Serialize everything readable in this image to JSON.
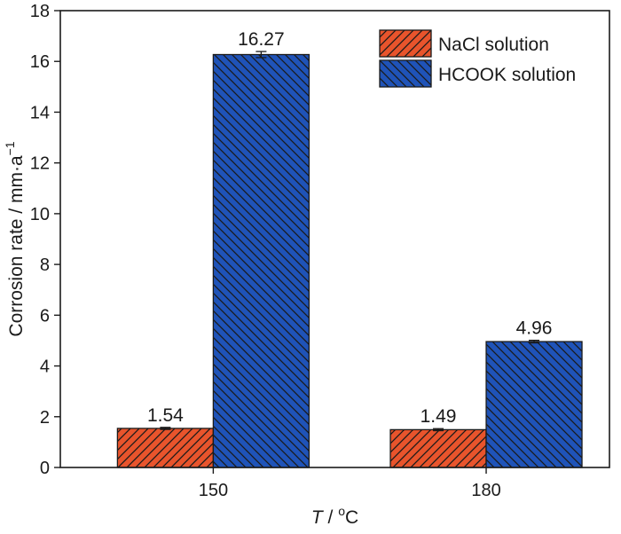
{
  "chart_data": {
    "type": "bar",
    "categories": [
      "150",
      "180"
    ],
    "series": [
      {
        "name": "NaCl solution",
        "values": [
          1.54,
          1.49
        ],
        "errors": [
          0.04,
          0.04
        ],
        "labels": [
          "1.54",
          "1.49"
        ],
        "color": "#e8542c",
        "hatch": "forward-diagonal"
      },
      {
        "name": "HCOOK solution",
        "values": [
          16.27,
          4.96
        ],
        "errors": [
          0.12,
          0.05
        ],
        "labels": [
          "16.27",
          "4.96"
        ],
        "color": "#1f53b8",
        "hatch": "back-diagonal"
      }
    ],
    "xlabel": {
      "italic": "T",
      "rest": " / ",
      "sup": "o",
      "unit": "C"
    },
    "ylabel": {
      "main": "Corrosion rate / mm·a",
      "sup": "−1"
    },
    "ylim": [
      0,
      18
    ],
    "yticks": [
      0,
      2,
      4,
      6,
      8,
      10,
      12,
      14,
      16,
      18
    ],
    "legend_position": "top-right",
    "grid": false
  }
}
